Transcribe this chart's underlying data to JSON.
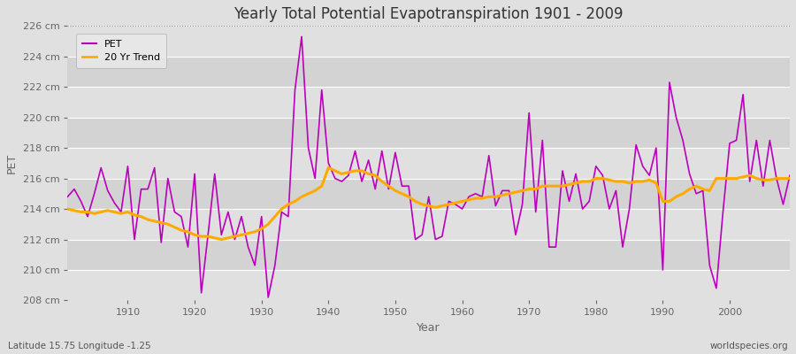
{
  "title": "Yearly Total Potential Evapotranspiration 1901 - 2009",
  "xlabel": "Year",
  "ylabel": "PET",
  "subtitle_lat": "Latitude 15.75 Longitude -1.25",
  "watermark": "worldspecies.org",
  "ylim": [
    208,
    226
  ],
  "yticks": [
    208,
    210,
    212,
    214,
    216,
    218,
    220,
    222,
    224,
    226
  ],
  "ytick_labels": [
    "208 cm",
    "210 cm",
    "212 cm",
    "214 cm",
    "216 cm",
    "218 cm",
    "220 cm",
    "222 cm",
    "224 cm",
    "226 cm"
  ],
  "xlim": [
    1901,
    2009
  ],
  "xticks": [
    1910,
    1920,
    1930,
    1940,
    1950,
    1960,
    1970,
    1980,
    1990,
    2000
  ],
  "pet_color": "#bb00bb",
  "trend_color": "#ffaa00",
  "bg_color": "#e0e0e0",
  "plot_bg_color": "#d8d8d8",
  "grid_color": "#ffffff",
  "dotted_line_y": 226,
  "pet_data": {
    "years": [
      1901,
      1902,
      1903,
      1904,
      1905,
      1906,
      1907,
      1908,
      1909,
      1910,
      1911,
      1912,
      1913,
      1914,
      1915,
      1916,
      1917,
      1918,
      1919,
      1920,
      1921,
      1922,
      1923,
      1924,
      1925,
      1926,
      1927,
      1928,
      1929,
      1930,
      1931,
      1932,
      1933,
      1934,
      1935,
      1936,
      1937,
      1938,
      1939,
      1940,
      1941,
      1942,
      1943,
      1944,
      1945,
      1946,
      1947,
      1948,
      1949,
      1950,
      1951,
      1952,
      1953,
      1954,
      1955,
      1956,
      1957,
      1958,
      1959,
      1960,
      1961,
      1962,
      1963,
      1964,
      1965,
      1966,
      1967,
      1968,
      1969,
      1970,
      1971,
      1972,
      1973,
      1974,
      1975,
      1976,
      1977,
      1978,
      1979,
      1980,
      1981,
      1982,
      1983,
      1984,
      1985,
      1986,
      1987,
      1988,
      1989,
      1990,
      1991,
      1992,
      1993,
      1994,
      1995,
      1996,
      1997,
      1998,
      1999,
      2000,
      2001,
      2002,
      2003,
      2004,
      2005,
      2006,
      2007,
      2008,
      2009
    ],
    "values": [
      214.8,
      215.3,
      214.5,
      213.5,
      215.0,
      216.7,
      215.2,
      214.4,
      213.8,
      216.8,
      212.0,
      215.3,
      215.3,
      216.7,
      211.8,
      216.0,
      213.8,
      213.5,
      211.5,
      216.3,
      208.5,
      212.3,
      216.3,
      212.3,
      213.8,
      212.0,
      213.5,
      211.5,
      210.3,
      213.5,
      208.2,
      210.3,
      213.8,
      213.5,
      221.8,
      225.3,
      218.0,
      216.0,
      221.8,
      217.0,
      216.0,
      215.8,
      216.2,
      217.8,
      215.8,
      217.2,
      215.3,
      217.8,
      215.3,
      217.7,
      215.5,
      215.5,
      212.0,
      212.3,
      214.8,
      212.0,
      212.2,
      214.5,
      214.3,
      214.0,
      214.8,
      215.0,
      214.8,
      217.5,
      214.2,
      215.2,
      215.2,
      212.3,
      214.3,
      220.3,
      213.8,
      218.5,
      211.5,
      211.5,
      216.5,
      214.5,
      216.3,
      214.0,
      214.5,
      216.8,
      216.2,
      214.0,
      215.2,
      211.5,
      214.0,
      218.2,
      216.8,
      216.2,
      218.0,
      210.0,
      222.3,
      220.0,
      218.5,
      216.3,
      215.0,
      215.2,
      210.3,
      208.8,
      213.8,
      218.3,
      218.5,
      221.5,
      215.8,
      218.5,
      215.5,
      218.5,
      216.0,
      214.3,
      216.2
    ]
  },
  "trend_data": {
    "years": [
      1901,
      1902,
      1903,
      1904,
      1905,
      1906,
      1907,
      1908,
      1909,
      1910,
      1911,
      1912,
      1913,
      1914,
      1915,
      1916,
      1917,
      1918,
      1919,
      1920,
      1921,
      1922,
      1923,
      1924,
      1925,
      1926,
      1927,
      1928,
      1929,
      1930,
      1931,
      1932,
      1933,
      1934,
      1935,
      1936,
      1937,
      1938,
      1939,
      1940,
      1941,
      1942,
      1943,
      1944,
      1945,
      1946,
      1947,
      1948,
      1949,
      1950,
      1951,
      1952,
      1953,
      1954,
      1955,
      1956,
      1957,
      1958,
      1959,
      1960,
      1961,
      1962,
      1963,
      1964,
      1965,
      1966,
      1967,
      1968,
      1969,
      1970,
      1971,
      1972,
      1973,
      1974,
      1975,
      1976,
      1977,
      1978,
      1979,
      1980,
      1981,
      1982,
      1983,
      1984,
      1985,
      1986,
      1987,
      1988,
      1989,
      1990,
      1991,
      1992,
      1993,
      1994,
      1995,
      1996,
      1997,
      1998,
      1999,
      2000,
      2001,
      2002,
      2003,
      2004,
      2005,
      2006,
      2007,
      2008,
      2009
    ],
    "values": [
      214.0,
      213.9,
      213.8,
      213.8,
      213.7,
      213.8,
      213.9,
      213.8,
      213.7,
      213.8,
      213.6,
      213.5,
      213.3,
      213.2,
      213.1,
      213.0,
      212.8,
      212.6,
      212.5,
      212.3,
      212.2,
      212.2,
      212.1,
      212.0,
      212.1,
      212.2,
      212.3,
      212.4,
      212.5,
      212.7,
      213.0,
      213.5,
      214.0,
      214.3,
      214.5,
      214.8,
      215.0,
      215.2,
      215.5,
      216.7,
      216.5,
      216.3,
      216.4,
      216.5,
      216.5,
      216.3,
      216.2,
      215.8,
      215.5,
      215.2,
      215.0,
      214.8,
      214.5,
      214.3,
      214.2,
      214.1,
      214.2,
      214.3,
      214.4,
      214.5,
      214.6,
      214.7,
      214.7,
      214.8,
      214.8,
      214.9,
      215.0,
      215.1,
      215.2,
      215.3,
      215.3,
      215.5,
      215.5,
      215.5,
      215.5,
      215.6,
      215.7,
      215.8,
      215.8,
      216.0,
      216.0,
      215.9,
      215.8,
      215.8,
      215.7,
      215.8,
      215.8,
      215.9,
      215.7,
      214.5,
      214.5,
      214.8,
      215.0,
      215.3,
      215.5,
      215.3,
      215.2,
      216.0,
      216.0,
      216.0,
      216.0,
      216.1,
      216.2,
      216.0,
      215.9,
      215.9,
      216.0,
      216.0,
      216.0
    ]
  }
}
